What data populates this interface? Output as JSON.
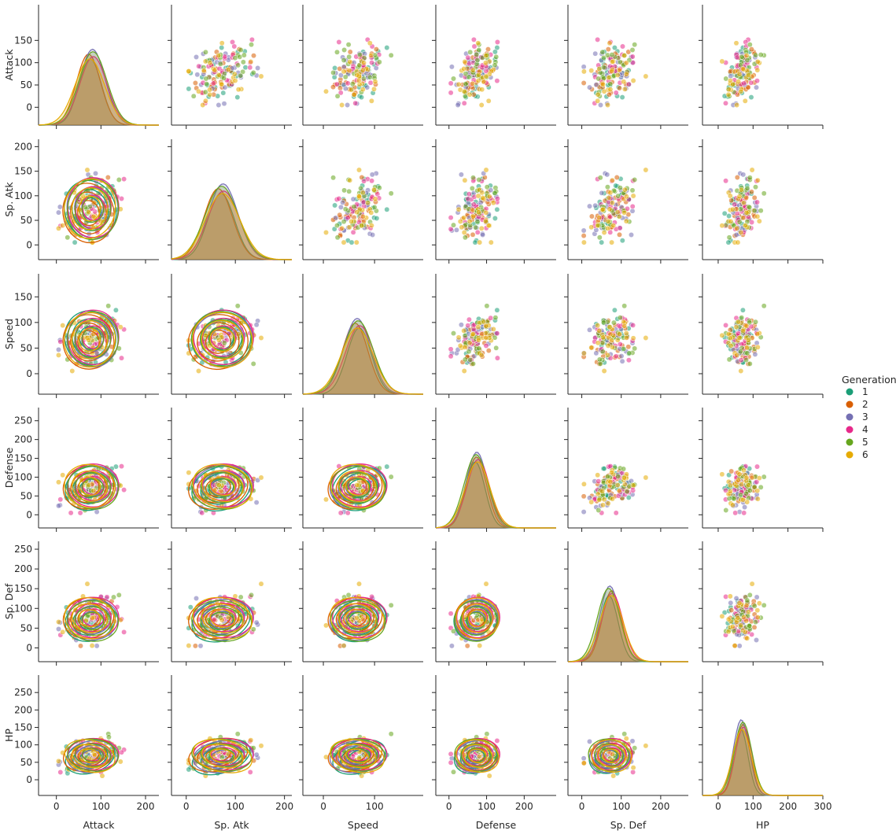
{
  "chart_data": {
    "type": "pairplot",
    "variables": [
      "Attack",
      "Sp. Atk",
      "Speed",
      "Defense",
      "Sp. Def",
      "HP"
    ],
    "axis_ranges": [
      {
        "name": "Attack",
        "lim": [
          -40,
          230
        ],
        "ticks": [
          0,
          100,
          200
        ],
        "row_ticks": [
          0,
          50,
          100,
          150
        ]
      },
      {
        "name": "Sp. Atk",
        "lim": [
          -30,
          215
        ],
        "ticks": [
          0,
          100,
          200
        ],
        "row_ticks": [
          0,
          50,
          100,
          150,
          200
        ]
      },
      {
        "name": "Speed",
        "lim": [
          -40,
          195
        ],
        "ticks": [
          0,
          100
        ],
        "row_ticks": [
          0,
          50,
          100,
          150
        ]
      },
      {
        "name": "Defense",
        "lim": [
          -35,
          285
        ],
        "ticks": [
          0,
          100,
          200
        ],
        "row_ticks": [
          0,
          50,
          100,
          150,
          200,
          250
        ]
      },
      {
        "name": "Sp. Def",
        "lim": [
          -35,
          270
        ],
        "ticks": [
          0,
          100,
          200
        ],
        "row_ticks": [
          0,
          50,
          100,
          150,
          200,
          250
        ]
      },
      {
        "name": "HP",
        "lim": [
          -45,
          300
        ],
        "ticks": [
          0,
          100,
          200,
          300
        ],
        "row_ticks": [
          0,
          50,
          100,
          150,
          200,
          250
        ]
      }
    ],
    "hue": {
      "title": "Generation",
      "levels": [
        "1",
        "2",
        "3",
        "4",
        "5",
        "6"
      ],
      "colors": [
        "#1b9e77",
        "#d95f02",
        "#7570b3",
        "#e7298a",
        "#66a61e",
        "#e6ab02"
      ]
    },
    "group_means": {
      "1": [
        76,
        71,
        70,
        70,
        69,
        65
      ],
      "2": [
        72,
        65,
        62,
        73,
        76,
        71
      ],
      "3": [
        81,
        75,
        66,
        74,
        71,
        66
      ],
      "4": [
        83,
        76,
        71,
        78,
        77,
        73
      ],
      "5": [
        82,
        72,
        68,
        72,
        68,
        71
      ],
      "6": [
        75,
        74,
        66,
        76,
        75,
        68
      ]
    },
    "diagonal": "kde",
    "upper": "scatter",
    "lower": "kde contours",
    "legend_position": "right"
  }
}
